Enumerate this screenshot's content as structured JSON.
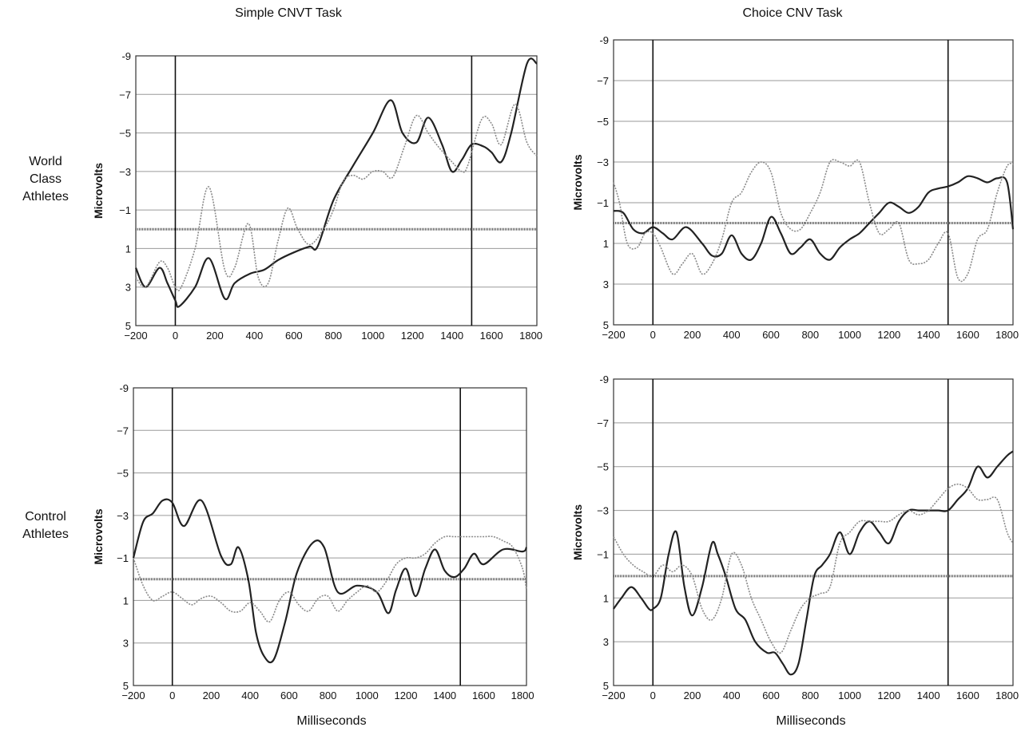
{
  "figure": {
    "column_titles": [
      "Simple CNVT Task",
      "Choice CNV Task"
    ],
    "row_labels": [
      [
        "World",
        "Class",
        "Athletes"
      ],
      [
        "Control",
        "Athletes"
      ]
    ],
    "xlabel": "Milliseconds",
    "ylabel": "Microvolts",
    "colors": {
      "solid": "#222222",
      "dotted": "#8a8a8a",
      "baseline": "#555555",
      "grid": "#9a9a9a"
    }
  },
  "chart_data": [
    {
      "type": "line",
      "panel": "World Class Athletes / Simple CNVT Task",
      "xlabel": "",
      "ylabel": "Microvolts",
      "xlim": [
        -200,
        1830
      ],
      "ylim": [
        5,
        -9
      ],
      "xticks": [
        -200,
        0,
        200,
        400,
        600,
        800,
        1000,
        1200,
        1400,
        1600,
        1800
      ],
      "yticks": [
        -9,
        -7,
        -5,
        -3,
        -1,
        1,
        3,
        5
      ],
      "ytick_labels": [
        "-9",
        "−7",
        "−5",
        "−3",
        "−1",
        "1",
        "3",
        "5"
      ],
      "markers": [
        0,
        1500
      ],
      "baseline": 0,
      "series": [
        {
          "style": "solid",
          "x": [
            -200,
            -150,
            -80,
            -40,
            0,
            20,
            100,
            170,
            250,
            300,
            380,
            450,
            520,
            600,
            680,
            720,
            800,
            900,
            1000,
            1090,
            1150,
            1220,
            1280,
            1350,
            1400,
            1450,
            1500,
            1560,
            1600,
            1650,
            1700,
            1780,
            1830
          ],
          "y": [
            2,
            3,
            2,
            2.8,
            3.7,
            4,
            3,
            1.5,
            3.6,
            2.8,
            2.3,
            2.1,
            1.6,
            1.2,
            0.9,
            0.9,
            -1.5,
            -3.3,
            -5,
            -6.7,
            -5,
            -4.5,
            -5.8,
            -4.4,
            -3,
            -3.6,
            -4.4,
            -4.3,
            -4,
            -3.5,
            -5,
            -8.6,
            -8.6
          ]
        },
        {
          "style": "dotted",
          "x": [
            -200,
            -150,
            -80,
            -40,
            0,
            30,
            100,
            170,
            250,
            300,
            370,
            420,
            470,
            520,
            570,
            620,
            680,
            750,
            800,
            850,
            900,
            950,
            1000,
            1050,
            1100,
            1160,
            1220,
            1280,
            1330,
            1400,
            1450,
            1480,
            1550,
            1600,
            1650,
            1720,
            1780,
            1830
          ],
          "y": [
            2.5,
            3,
            1.7,
            2,
            3,
            3,
            1,
            -2.2,
            2.1,
            2,
            -0.3,
            2.5,
            2.8,
            0.6,
            -1.1,
            0,
            0.8,
            0,
            -1,
            -2.5,
            -2.8,
            -2.6,
            -3,
            -3,
            -2.7,
            -4.3,
            -5.9,
            -5,
            -4.3,
            -3.5,
            -3,
            -3.3,
            -5.7,
            -5.5,
            -4.4,
            -6.5,
            -4.5,
            -3.8
          ]
        }
      ]
    },
    {
      "type": "line",
      "panel": "World Class Athletes / Choice CNV Task",
      "xlabel": "",
      "ylabel": "Microvolts",
      "xlim": [
        -200,
        1830
      ],
      "ylim": [
        5,
        -9
      ],
      "xticks": [
        -200,
        0,
        200,
        400,
        600,
        800,
        1000,
        1200,
        1400,
        1600,
        1800
      ],
      "yticks": [
        -9,
        -7,
        -5,
        -3,
        -1,
        1,
        3,
        5
      ],
      "ytick_labels": [
        "-9",
        "−7",
        "−5",
        "−3",
        "−1",
        "1",
        "3",
        "5"
      ],
      "markers": [
        0,
        1500
      ],
      "baseline": 0,
      "series": [
        {
          "style": "solid",
          "x": [
            -200,
            -150,
            -100,
            -50,
            0,
            50,
            100,
            170,
            250,
            300,
            350,
            400,
            450,
            500,
            550,
            600,
            650,
            700,
            750,
            800,
            850,
            900,
            950,
            1000,
            1050,
            1100,
            1150,
            1200,
            1250,
            1300,
            1350,
            1400,
            1450,
            1500,
            1550,
            1600,
            1650,
            1700,
            1750,
            1800,
            1830
          ],
          "y": [
            -0.6,
            -0.5,
            0.3,
            0.5,
            0.2,
            0.5,
            0.8,
            0.2,
            1,
            1.6,
            1.5,
            0.6,
            1.5,
            1.8,
            1,
            -0.3,
            0.5,
            1.5,
            1.2,
            0.8,
            1.5,
            1.8,
            1.2,
            0.8,
            0.5,
            0,
            -0.5,
            -1,
            -0.8,
            -0.5,
            -0.8,
            -1.5,
            -1.7,
            -1.8,
            -2,
            -2.3,
            -2.2,
            -2,
            -2.2,
            -2,
            0.3
          ],
          "_note": ""
        },
        {
          "style": "dotted",
          "x": [
            -200,
            -170,
            -130,
            -80,
            -40,
            0,
            40,
            100,
            150,
            200,
            250,
            300,
            350,
            400,
            450,
            500,
            550,
            600,
            650,
            700,
            750,
            800,
            850,
            900,
            950,
            1000,
            1050,
            1100,
            1150,
            1200,
            1250,
            1300,
            1350,
            1400,
            1450,
            1500,
            1550,
            1600,
            1650,
            1700,
            1750,
            1800,
            1830
          ],
          "y": [
            -2,
            -1,
            1,
            1.2,
            0.5,
            0.5,
            1.2,
            2.5,
            2,
            1.5,
            2.5,
            2,
            0.8,
            -1,
            -1.5,
            -2.5,
            -3,
            -2.5,
            -0.5,
            0.3,
            0.3,
            -0.5,
            -1.5,
            -3,
            -3,
            -2.8,
            -3,
            -1,
            0.5,
            0.3,
            0,
            1.8,
            2,
            1.8,
            1,
            0.5,
            2.7,
            2.5,
            0.8,
            0.3,
            -1.5,
            -2.8,
            -2.9
          ]
        }
      ]
    },
    {
      "type": "line",
      "panel": "Control Athletes / Simple CNVT Task",
      "xlabel": "Milliseconds",
      "ylabel": "Microvolts",
      "xlim": [
        -200,
        1820
      ],
      "ylim": [
        5,
        -9
      ],
      "xticks": [
        -200,
        0,
        200,
        400,
        600,
        800,
        1000,
        1200,
        1400,
        1600,
        1800
      ],
      "yticks": [
        -9,
        -7,
        -5,
        -3,
        -1,
        1,
        3,
        5
      ],
      "ytick_labels": [
        "-9",
        "−7",
        "−5",
        "−3",
        "−1",
        "1",
        "3",
        "5"
      ],
      "markers": [
        0,
        1480
      ],
      "baseline": 0,
      "series": [
        {
          "style": "solid",
          "x": [
            -200,
            -150,
            -100,
            -50,
            0,
            60,
            150,
            250,
            300,
            340,
            390,
            430,
            470,
            520,
            580,
            640,
            720,
            780,
            850,
            950,
            1050,
            1110,
            1150,
            1200,
            1250,
            1300,
            1350,
            1400,
            1450,
            1500,
            1550,
            1600,
            1700,
            1800,
            1820
          ],
          "y": [
            -1,
            -2.7,
            -3.1,
            -3.7,
            -3.6,
            -2.5,
            -3.7,
            -1.1,
            -0.7,
            -1.5,
            0,
            2.5,
            3.6,
            3.8,
            2,
            -0.3,
            -1.7,
            -1.5,
            0.6,
            0.3,
            0.6,
            1.6,
            0.5,
            -0.5,
            0.8,
            -0.5,
            -1.4,
            -0.4,
            -0.1,
            -0.5,
            -1.2,
            -0.7,
            -1.4,
            -1.3,
            -1.5
          ]
        },
        {
          "style": "dotted",
          "x": [
            -200,
            -150,
            -100,
            -50,
            0,
            50,
            100,
            150,
            200,
            250,
            300,
            350,
            400,
            450,
            500,
            550,
            600,
            650,
            700,
            750,
            800,
            850,
            900,
            950,
            1000,
            1050,
            1100,
            1150,
            1200,
            1250,
            1300,
            1350,
            1400,
            1450,
            1500,
            1550,
            1600,
            1650,
            1700,
            1750,
            1800,
            1820
          ],
          "y": [
            -1,
            0.3,
            1,
            0.8,
            0.6,
            0.9,
            1.2,
            0.9,
            0.8,
            1.1,
            1.5,
            1.5,
            1.1,
            1.5,
            2,
            1,
            0.6,
            1.2,
            1.5,
            0.9,
            0.8,
            1.5,
            1,
            0.6,
            0.3,
            0.6,
            0.1,
            -0.7,
            -1,
            -1,
            -1.2,
            -1.7,
            -2,
            -2,
            -2,
            -2,
            -2,
            -2,
            -1.8,
            -1.5,
            -0.5,
            0.5
          ]
        }
      ]
    },
    {
      "type": "line",
      "panel": "Control Athletes / Choice CNV Task",
      "xlabel": "Milliseconds",
      "ylabel": "Microvolts",
      "xlim": [
        -200,
        1830
      ],
      "ylim": [
        5,
        -9
      ],
      "xticks": [
        -200,
        0,
        200,
        400,
        600,
        800,
        1000,
        1200,
        1400,
        1600,
        1800
      ],
      "yticks": [
        -9,
        -7,
        -5,
        -3,
        -1,
        1,
        3,
        5
      ],
      "ytick_labels": [
        "-9",
        "−7",
        "−5",
        "−3",
        "−1",
        "1",
        "3",
        "5"
      ],
      "markers": [
        0,
        1500
      ],
      "baseline": 0,
      "series": [
        {
          "style": "solid",
          "x": [
            -200,
            -160,
            -110,
            -60,
            -20,
            0,
            40,
            80,
            120,
            160,
            200,
            250,
            300,
            330,
            370,
            420,
            470,
            520,
            580,
            620,
            660,
            700,
            740,
            780,
            820,
            860,
            900,
            950,
            1000,
            1050,
            1100,
            1150,
            1200,
            1250,
            1300,
            1350,
            1400,
            1450,
            1500,
            1550,
            1600,
            1650,
            1700,
            1750,
            1800,
            1830
          ],
          "y": [
            1.5,
            1,
            0.5,
            1,
            1.5,
            1.5,
            1,
            -1,
            -2,
            0.5,
            1.8,
            0.5,
            -1.5,
            -1,
            0,
            1.5,
            2,
            3,
            3.5,
            3.5,
            4,
            4.5,
            4,
            2,
            0,
            -0.5,
            -1,
            -2,
            -1,
            -2,
            -2.5,
            -2,
            -1.5,
            -2.5,
            -3,
            -3,
            -3,
            -3,
            -3,
            -3.5,
            -4,
            -5,
            -4.5,
            -5,
            -5.5,
            -5.7
          ]
        },
        {
          "style": "dotted",
          "x": [
            -200,
            -150,
            -100,
            -50,
            0,
            50,
            100,
            150,
            200,
            250,
            300,
            350,
            400,
            450,
            500,
            550,
            600,
            650,
            700,
            750,
            800,
            850,
            900,
            950,
            1000,
            1050,
            1100,
            1150,
            1200,
            1250,
            1300,
            1350,
            1400,
            1450,
            1500,
            1550,
            1600,
            1650,
            1700,
            1750,
            1800,
            1830
          ],
          "y": [
            -1.8,
            -1,
            -0.5,
            -0.2,
            0,
            -0.5,
            -0.2,
            -0.5,
            0,
            1.5,
            2,
            1,
            -1,
            -0.5,
            1,
            2,
            3,
            3.5,
            2.5,
            1.5,
            1,
            0.8,
            0.5,
            -1.5,
            -2,
            -2.5,
            -2.5,
            -2.5,
            -2.5,
            -2.8,
            -3,
            -2.8,
            -3,
            -3.5,
            -4,
            -4.2,
            -4,
            -3.5,
            -3.5,
            -3.5,
            -2,
            -1.5
          ]
        }
      ]
    }
  ]
}
